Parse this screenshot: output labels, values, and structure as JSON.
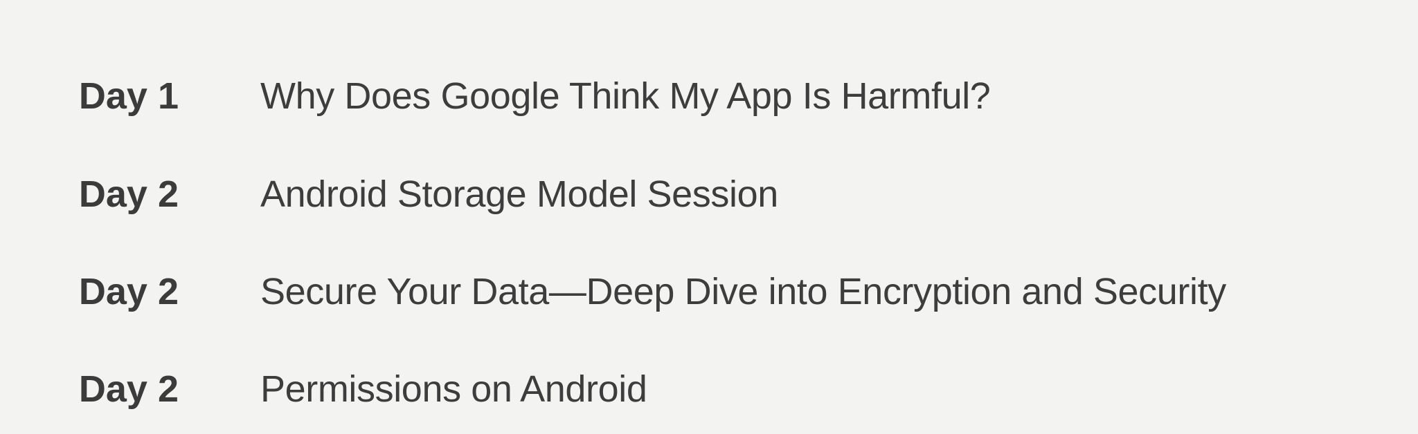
{
  "sessions": [
    {
      "day": "Day 1",
      "title": "Why Does Google Think My App Is Harmful?"
    },
    {
      "day": "Day 2",
      "title": "Android Storage Model Session"
    },
    {
      "day": "Day 2",
      "title": "Secure Your Data—Deep Dive into Encryption and Security"
    },
    {
      "day": "Day 2",
      "title": "Permissions on Android"
    }
  ]
}
